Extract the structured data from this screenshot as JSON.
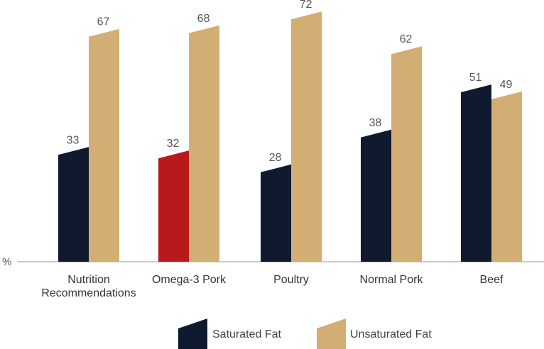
{
  "chart_data": {
    "type": "bar",
    "title": "",
    "xlabel": "",
    "ylabel": "%",
    "ylim": [
      0,
      80
    ],
    "categories": [
      [
        "Nutrition",
        "Recommendations"
      ],
      [
        "Omega-3 Pork"
      ],
      [
        "Poultry"
      ],
      [
        "Normal Pork"
      ],
      [
        "Beef"
      ]
    ],
    "series": [
      {
        "name": "Saturated Fat",
        "color": "#0f1a2e",
        "values": [
          33,
          32,
          28,
          38,
          51
        ]
      },
      {
        "name": "Unsaturated Fat",
        "color": "#d2ae74",
        "values": [
          67,
          68,
          72,
          62,
          49
        ]
      }
    ],
    "highlight": {
      "series": 0,
      "index": 1,
      "color": "#b8191b"
    },
    "legend_position": "bottom-center",
    "grid": false
  }
}
